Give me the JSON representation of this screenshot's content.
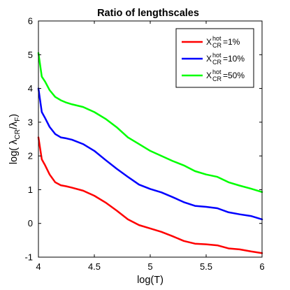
{
  "chart_data": {
    "type": "line",
    "title": "Ratio of lengthscales",
    "xlabel": "log(T)",
    "ylabel": {
      "prefix": "log( ",
      "num_symbol": "λ",
      "num_sub": "CR",
      "sep": "/",
      "den_symbol": "λ",
      "den_sub": "F",
      "suffix": ")"
    },
    "xlim": [
      4,
      6
    ],
    "ylim": [
      -1,
      6
    ],
    "xticks": [
      "4",
      "4.5",
      "5",
      "5.5",
      "6"
    ],
    "yticks": [
      "-1",
      "0",
      "1",
      "2",
      "3",
      "4",
      "5",
      "6"
    ],
    "xtick_values": [
      4,
      4.5,
      5,
      5.5,
      6
    ],
    "ytick_values": [
      -1,
      0,
      1,
      2,
      3,
      4,
      5,
      6
    ],
    "grid": false,
    "legend_position": "top-right",
    "series": [
      {
        "legend": {
          "base": "X",
          "sup": "hot",
          "sub": "CR",
          "suffix": "=1%"
        },
        "color": "#ff0000",
        "x": [
          4.0,
          4.03,
          4.06,
          4.1,
          4.15,
          4.2,
          4.25,
          4.3,
          4.4,
          4.5,
          4.6,
          4.7,
          4.8,
          4.9,
          5.0,
          5.1,
          5.2,
          5.3,
          5.4,
          5.5,
          5.6,
          5.7,
          5.8,
          5.9,
          6.0
        ],
        "y": [
          2.55,
          1.9,
          1.72,
          1.45,
          1.22,
          1.13,
          1.1,
          1.06,
          0.97,
          0.82,
          0.62,
          0.38,
          0.12,
          -0.05,
          -0.15,
          -0.25,
          -0.38,
          -0.52,
          -0.6,
          -0.62,
          -0.65,
          -0.74,
          -0.77,
          -0.83,
          -0.88
        ]
      },
      {
        "legend": {
          "base": "X",
          "sup": "hot",
          "sub": "CR",
          "suffix": "=10%"
        },
        "color": "#0000ff",
        "x": [
          4.0,
          4.03,
          4.06,
          4.1,
          4.15,
          4.2,
          4.25,
          4.3,
          4.4,
          4.5,
          4.6,
          4.7,
          4.8,
          4.9,
          5.0,
          5.1,
          5.2,
          5.3,
          5.4,
          5.5,
          5.6,
          5.7,
          5.8,
          5.9,
          6.0
        ],
        "y": [
          4.0,
          3.3,
          3.12,
          2.86,
          2.65,
          2.55,
          2.52,
          2.48,
          2.35,
          2.15,
          1.88,
          1.62,
          1.38,
          1.15,
          1.02,
          0.92,
          0.78,
          0.63,
          0.52,
          0.49,
          0.45,
          0.33,
          0.27,
          0.22,
          0.12
        ]
      },
      {
        "legend": {
          "base": "X",
          "sup": "hot",
          "sub": "CR",
          "suffix": "=50%"
        },
        "color": "#00ff00",
        "x": [
          4.0,
          4.03,
          4.06,
          4.1,
          4.15,
          4.2,
          4.25,
          4.3,
          4.4,
          4.5,
          4.6,
          4.7,
          4.8,
          4.9,
          5.0,
          5.1,
          5.2,
          5.3,
          5.4,
          5.5,
          5.6,
          5.7,
          5.8,
          5.9,
          6.0
        ],
        "y": [
          5.05,
          4.35,
          4.2,
          3.95,
          3.75,
          3.65,
          3.58,
          3.53,
          3.45,
          3.3,
          3.1,
          2.85,
          2.55,
          2.35,
          2.15,
          2.0,
          1.85,
          1.72,
          1.55,
          1.45,
          1.38,
          1.22,
          1.12,
          1.03,
          0.93
        ]
      }
    ]
  }
}
